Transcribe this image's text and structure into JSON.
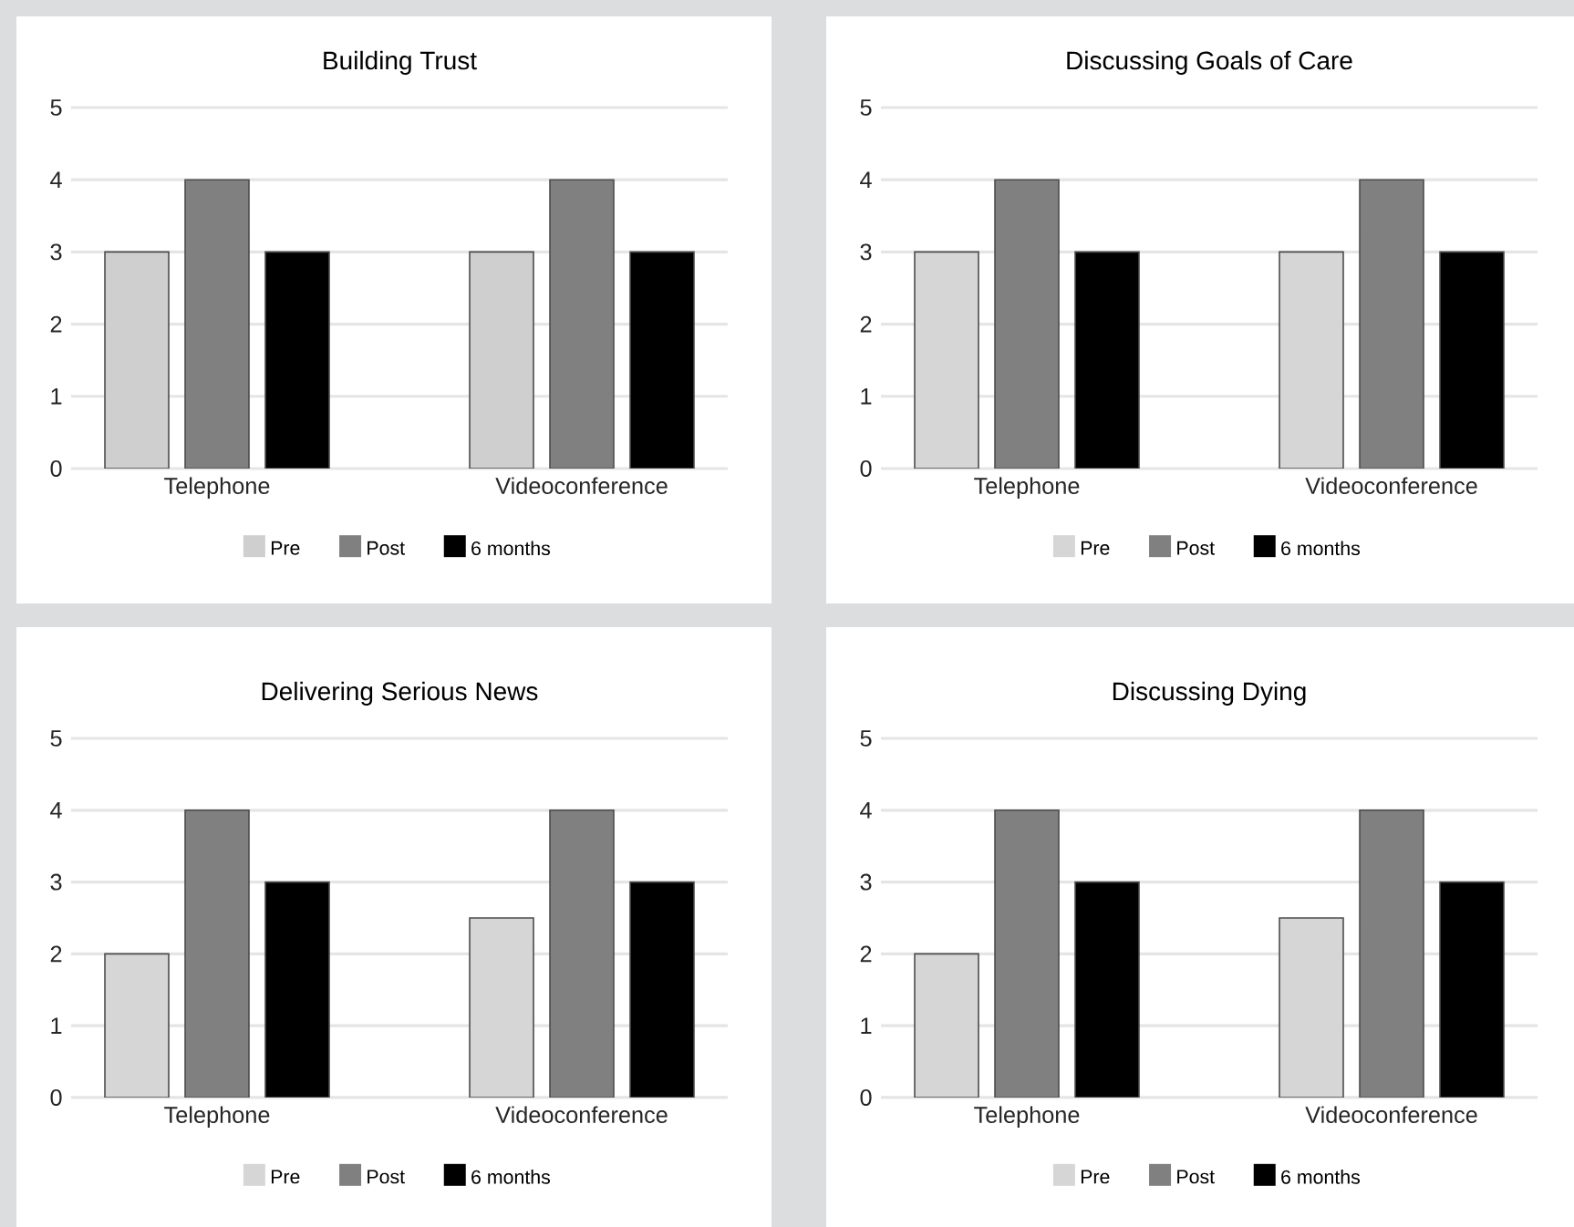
{
  "chart_data": [
    {
      "type": "bar",
      "title": "Building Trust",
      "categories": [
        "Telephone",
        "Videoconference"
      ],
      "ylim": [
        0,
        5
      ],
      "yticks": [
        0,
        1,
        2,
        3,
        4,
        5
      ],
      "grid": "y",
      "legend": "bottom",
      "series": [
        {
          "name": "Pre",
          "color": "#d0cfd0",
          "values": [
            3,
            3
          ]
        },
        {
          "name": "Post",
          "color": "#808080",
          "values": [
            4,
            4
          ]
        },
        {
          "name": "6 months",
          "color": "#000000",
          "values": [
            3,
            3
          ]
        }
      ]
    },
    {
      "type": "bar",
      "title": "Discussing Goals of Care",
      "categories": [
        "Telephone",
        "Videoconference"
      ],
      "ylim": [
        0,
        5
      ],
      "yticks": [
        0,
        1,
        2,
        3,
        4,
        5
      ],
      "grid": "y",
      "legend": "bottom",
      "series": [
        {
          "name": "Pre",
          "color": "#d6d6d6",
          "values": [
            3,
            3
          ]
        },
        {
          "name": "Post",
          "color": "#808080",
          "values": [
            4,
            4
          ]
        },
        {
          "name": "6 months",
          "color": "#000000",
          "values": [
            3,
            3
          ]
        }
      ]
    },
    {
      "type": "bar",
      "title": "Delivering Serious News",
      "categories": [
        "Telephone",
        "Videoconference"
      ],
      "ylim": [
        0,
        5
      ],
      "yticks": [
        0,
        1,
        2,
        3,
        4,
        5
      ],
      "grid": "y",
      "legend": "bottom",
      "series": [
        {
          "name": "Pre",
          "color": "#d6d6d6",
          "values": [
            2,
            2.5
          ]
        },
        {
          "name": "Post",
          "color": "#808080",
          "values": [
            4,
            4
          ]
        },
        {
          "name": "6 months",
          "color": "#000000",
          "values": [
            3,
            3
          ]
        }
      ]
    },
    {
      "type": "bar",
      "title": "Discussing Dying",
      "categories": [
        "Telephone",
        "Videoconference"
      ],
      "ylim": [
        0,
        5
      ],
      "yticks": [
        0,
        1,
        2,
        3,
        4,
        5
      ],
      "grid": "y",
      "legend": "bottom",
      "series": [
        {
          "name": "Pre",
          "color": "#d6d6d6",
          "values": [
            2,
            2.5
          ]
        },
        {
          "name": "Post",
          "color": "#808080",
          "values": [
            4,
            4
          ]
        },
        {
          "name": "6 months",
          "color": "#000000",
          "values": [
            3,
            3
          ]
        }
      ]
    }
  ]
}
